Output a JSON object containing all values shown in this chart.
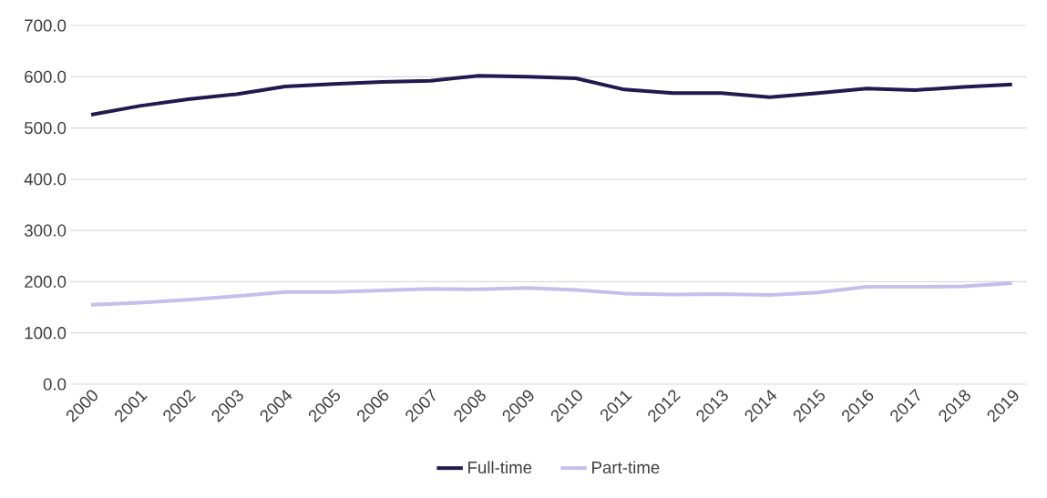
{
  "chart_data": {
    "type": "line",
    "categories": [
      "2000",
      "2001",
      "2002",
      "2003",
      "2004",
      "2005",
      "2006",
      "2007",
      "2008",
      "2009",
      "2010",
      "2011",
      "2012",
      "2013",
      "2014",
      "2015",
      "2016",
      "2017",
      "2018",
      "2019"
    ],
    "series": [
      {
        "name": "Full-time",
        "color": "#24194f",
        "values": [
          526,
          543,
          556,
          566,
          581,
          586,
          590,
          592,
          602,
          600,
          597,
          575,
          568,
          568,
          560,
          568,
          577,
          574,
          580,
          585
        ]
      },
      {
        "name": "Part-time",
        "color": "#c5bfec",
        "values": [
          155,
          159,
          165,
          172,
          180,
          180,
          183,
          186,
          185,
          188,
          184,
          177,
          175,
          176,
          174,
          179,
          190,
          190,
          191,
          197
        ]
      }
    ],
    "ylim": [
      0,
      700
    ],
    "yticks": [
      {
        "value": 0,
        "label": "0.0"
      },
      {
        "value": 100,
        "label": "100.0"
      },
      {
        "value": 200,
        "label": "200.0"
      },
      {
        "value": 300,
        "label": "300.0"
      },
      {
        "value": 400,
        "label": "400.0"
      },
      {
        "value": 500,
        "label": "500.0"
      },
      {
        "value": 600,
        "label": "600.0"
      },
      {
        "value": 700,
        "label": "700.0"
      }
    ],
    "grid": "y",
    "legend": "bottom",
    "marker": "none",
    "line_style": "solid"
  }
}
